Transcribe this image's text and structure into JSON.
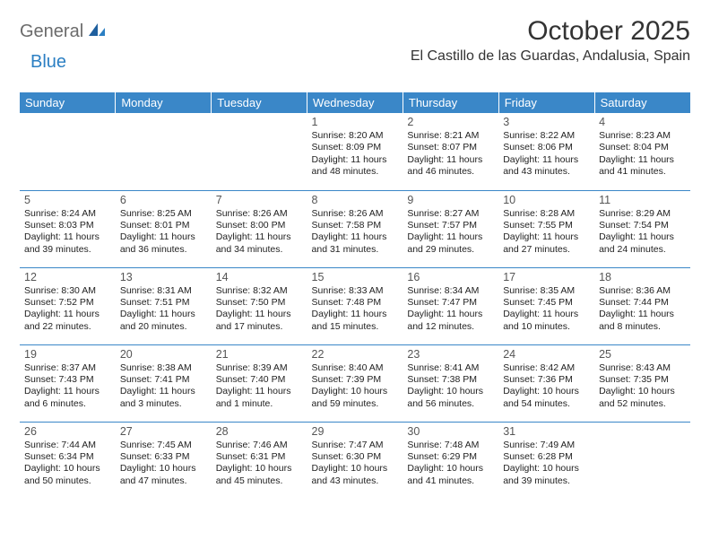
{
  "logo": {
    "part1": "General",
    "part2": "Blue"
  },
  "title": "October 2025",
  "location": "El Castillo de las Guardas, Andalusia, Spain",
  "colors": {
    "header_bg": "#3a87c8",
    "header_text": "#ffffff",
    "border": "#3a87c8",
    "logo_gray": "#6b6b6b",
    "logo_blue": "#2b7fc3",
    "background": "#ffffff"
  },
  "day_headers": [
    "Sunday",
    "Monday",
    "Tuesday",
    "Wednesday",
    "Thursday",
    "Friday",
    "Saturday"
  ],
  "weeks": [
    [
      null,
      null,
      null,
      {
        "n": "1",
        "sr": "Sunrise: 8:20 AM",
        "ss": "Sunset: 8:09 PM",
        "dl": "Daylight: 11 hours and 48 minutes."
      },
      {
        "n": "2",
        "sr": "Sunrise: 8:21 AM",
        "ss": "Sunset: 8:07 PM",
        "dl": "Daylight: 11 hours and 46 minutes."
      },
      {
        "n": "3",
        "sr": "Sunrise: 8:22 AM",
        "ss": "Sunset: 8:06 PM",
        "dl": "Daylight: 11 hours and 43 minutes."
      },
      {
        "n": "4",
        "sr": "Sunrise: 8:23 AM",
        "ss": "Sunset: 8:04 PM",
        "dl": "Daylight: 11 hours and 41 minutes."
      }
    ],
    [
      {
        "n": "5",
        "sr": "Sunrise: 8:24 AM",
        "ss": "Sunset: 8:03 PM",
        "dl": "Daylight: 11 hours and 39 minutes."
      },
      {
        "n": "6",
        "sr": "Sunrise: 8:25 AM",
        "ss": "Sunset: 8:01 PM",
        "dl": "Daylight: 11 hours and 36 minutes."
      },
      {
        "n": "7",
        "sr": "Sunrise: 8:26 AM",
        "ss": "Sunset: 8:00 PM",
        "dl": "Daylight: 11 hours and 34 minutes."
      },
      {
        "n": "8",
        "sr": "Sunrise: 8:26 AM",
        "ss": "Sunset: 7:58 PM",
        "dl": "Daylight: 11 hours and 31 minutes."
      },
      {
        "n": "9",
        "sr": "Sunrise: 8:27 AM",
        "ss": "Sunset: 7:57 PM",
        "dl": "Daylight: 11 hours and 29 minutes."
      },
      {
        "n": "10",
        "sr": "Sunrise: 8:28 AM",
        "ss": "Sunset: 7:55 PM",
        "dl": "Daylight: 11 hours and 27 minutes."
      },
      {
        "n": "11",
        "sr": "Sunrise: 8:29 AM",
        "ss": "Sunset: 7:54 PM",
        "dl": "Daylight: 11 hours and 24 minutes."
      }
    ],
    [
      {
        "n": "12",
        "sr": "Sunrise: 8:30 AM",
        "ss": "Sunset: 7:52 PM",
        "dl": "Daylight: 11 hours and 22 minutes."
      },
      {
        "n": "13",
        "sr": "Sunrise: 8:31 AM",
        "ss": "Sunset: 7:51 PM",
        "dl": "Daylight: 11 hours and 20 minutes."
      },
      {
        "n": "14",
        "sr": "Sunrise: 8:32 AM",
        "ss": "Sunset: 7:50 PM",
        "dl": "Daylight: 11 hours and 17 minutes."
      },
      {
        "n": "15",
        "sr": "Sunrise: 8:33 AM",
        "ss": "Sunset: 7:48 PM",
        "dl": "Daylight: 11 hours and 15 minutes."
      },
      {
        "n": "16",
        "sr": "Sunrise: 8:34 AM",
        "ss": "Sunset: 7:47 PM",
        "dl": "Daylight: 11 hours and 12 minutes."
      },
      {
        "n": "17",
        "sr": "Sunrise: 8:35 AM",
        "ss": "Sunset: 7:45 PM",
        "dl": "Daylight: 11 hours and 10 minutes."
      },
      {
        "n": "18",
        "sr": "Sunrise: 8:36 AM",
        "ss": "Sunset: 7:44 PM",
        "dl": "Daylight: 11 hours and 8 minutes."
      }
    ],
    [
      {
        "n": "19",
        "sr": "Sunrise: 8:37 AM",
        "ss": "Sunset: 7:43 PM",
        "dl": "Daylight: 11 hours and 6 minutes."
      },
      {
        "n": "20",
        "sr": "Sunrise: 8:38 AM",
        "ss": "Sunset: 7:41 PM",
        "dl": "Daylight: 11 hours and 3 minutes."
      },
      {
        "n": "21",
        "sr": "Sunrise: 8:39 AM",
        "ss": "Sunset: 7:40 PM",
        "dl": "Daylight: 11 hours and 1 minute."
      },
      {
        "n": "22",
        "sr": "Sunrise: 8:40 AM",
        "ss": "Sunset: 7:39 PM",
        "dl": "Daylight: 10 hours and 59 minutes."
      },
      {
        "n": "23",
        "sr": "Sunrise: 8:41 AM",
        "ss": "Sunset: 7:38 PM",
        "dl": "Daylight: 10 hours and 56 minutes."
      },
      {
        "n": "24",
        "sr": "Sunrise: 8:42 AM",
        "ss": "Sunset: 7:36 PM",
        "dl": "Daylight: 10 hours and 54 minutes."
      },
      {
        "n": "25",
        "sr": "Sunrise: 8:43 AM",
        "ss": "Sunset: 7:35 PM",
        "dl": "Daylight: 10 hours and 52 minutes."
      }
    ],
    [
      {
        "n": "26",
        "sr": "Sunrise: 7:44 AM",
        "ss": "Sunset: 6:34 PM",
        "dl": "Daylight: 10 hours and 50 minutes."
      },
      {
        "n": "27",
        "sr": "Sunrise: 7:45 AM",
        "ss": "Sunset: 6:33 PM",
        "dl": "Daylight: 10 hours and 47 minutes."
      },
      {
        "n": "28",
        "sr": "Sunrise: 7:46 AM",
        "ss": "Sunset: 6:31 PM",
        "dl": "Daylight: 10 hours and 45 minutes."
      },
      {
        "n": "29",
        "sr": "Sunrise: 7:47 AM",
        "ss": "Sunset: 6:30 PM",
        "dl": "Daylight: 10 hours and 43 minutes."
      },
      {
        "n": "30",
        "sr": "Sunrise: 7:48 AM",
        "ss": "Sunset: 6:29 PM",
        "dl": "Daylight: 10 hours and 41 minutes."
      },
      {
        "n": "31",
        "sr": "Sunrise: 7:49 AM",
        "ss": "Sunset: 6:28 PM",
        "dl": "Daylight: 10 hours and 39 minutes."
      },
      null
    ]
  ]
}
